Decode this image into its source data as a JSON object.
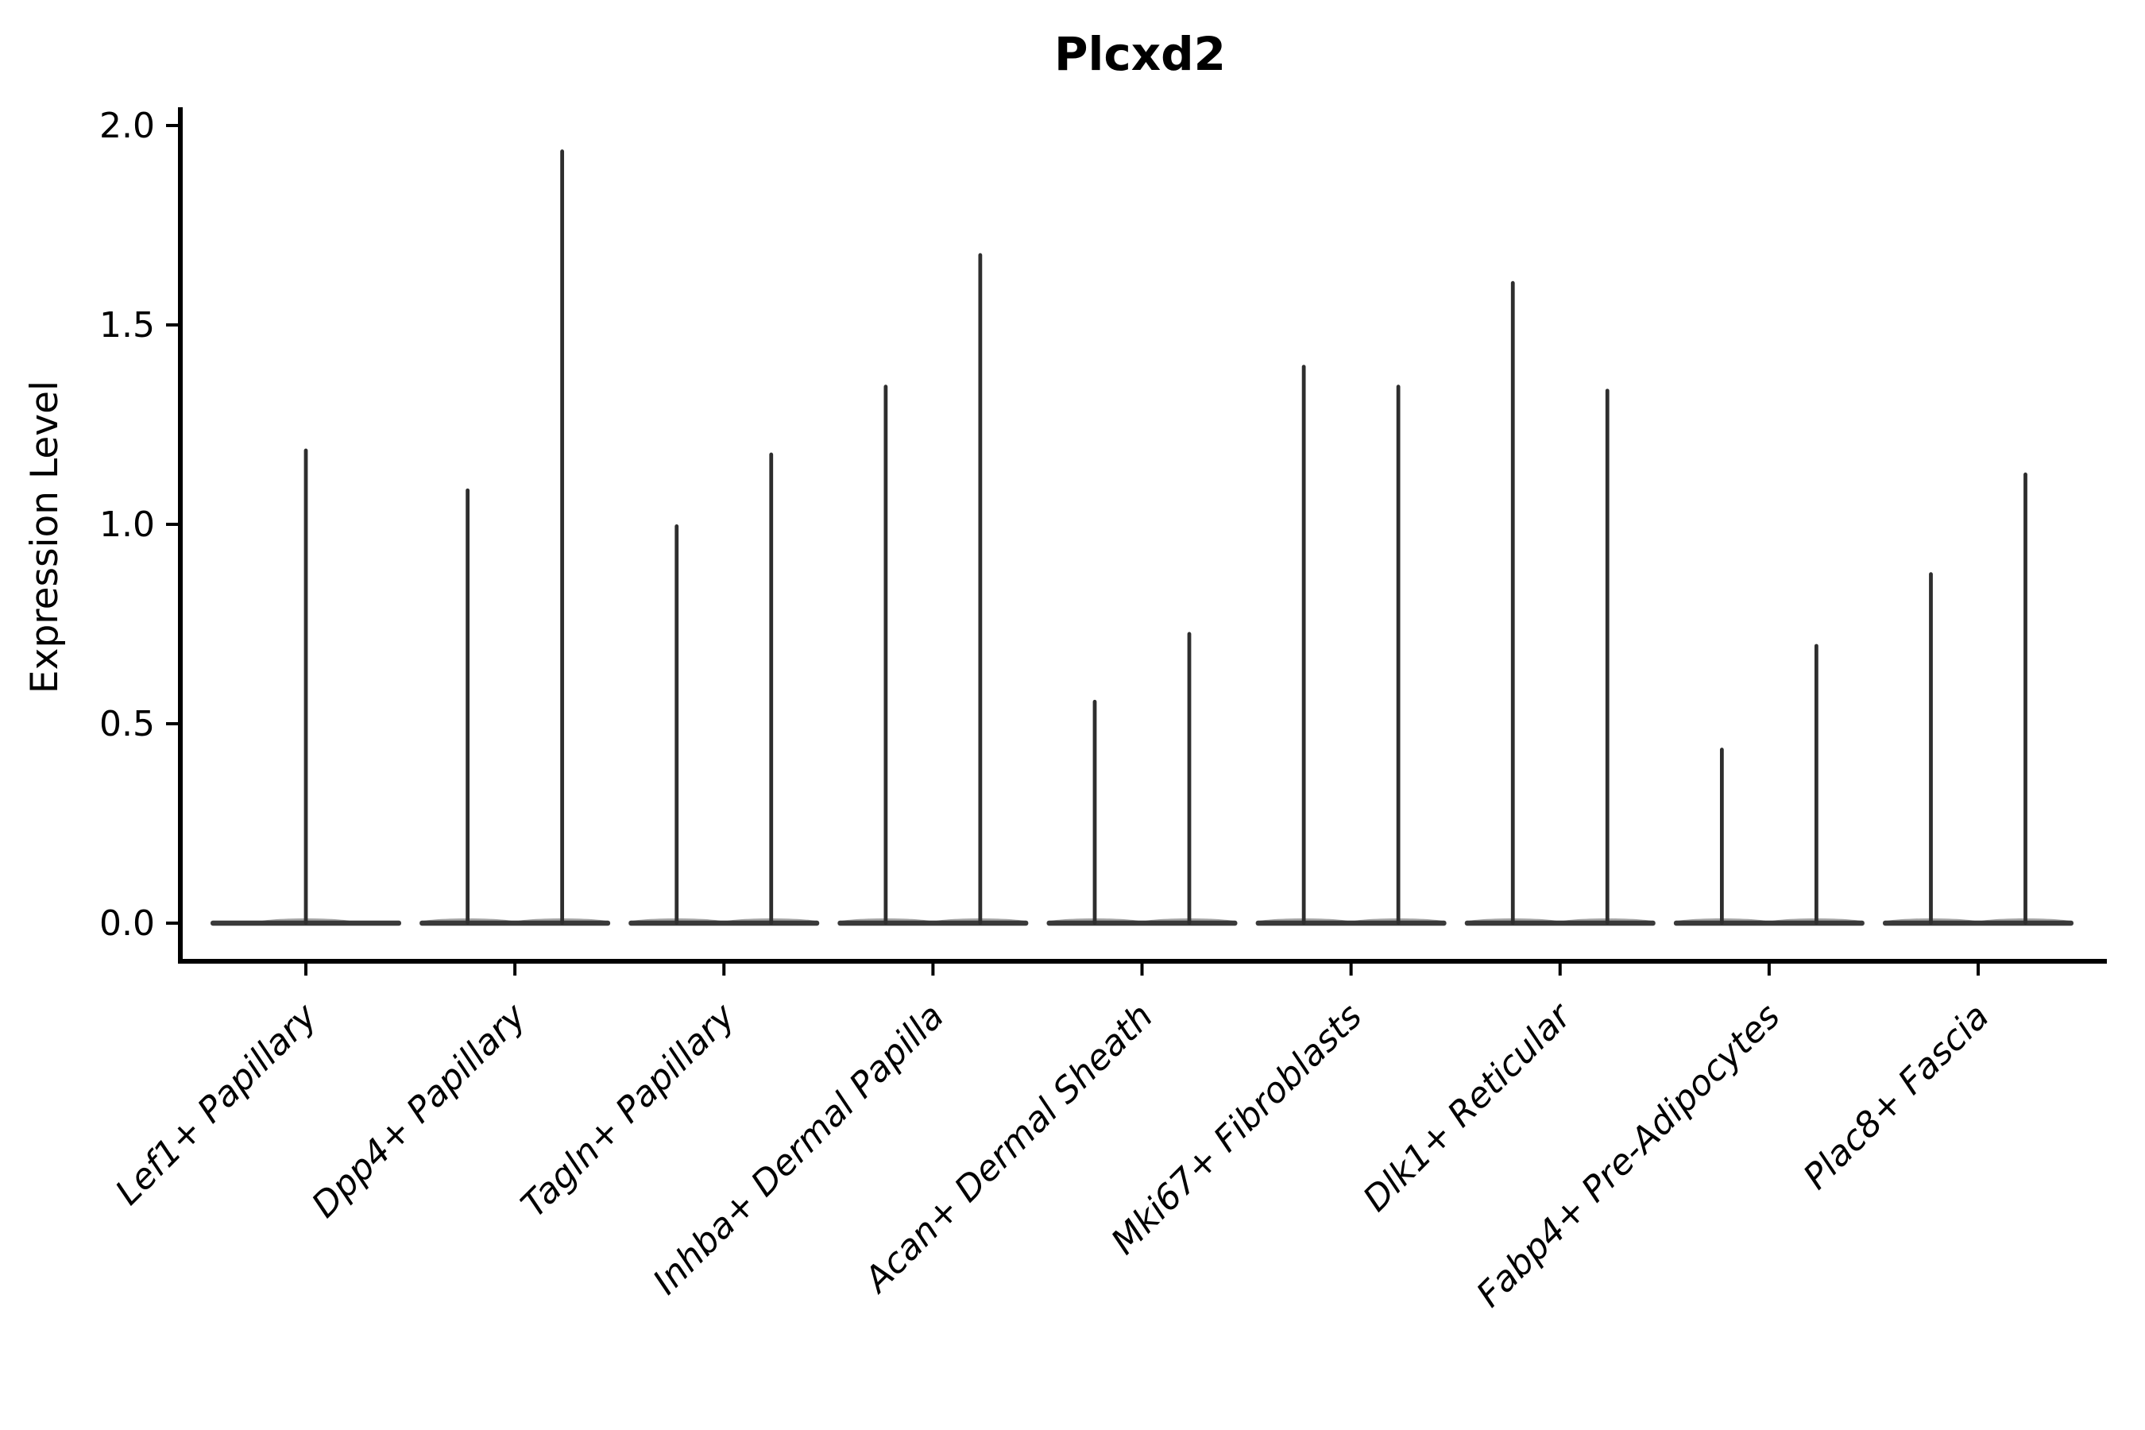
{
  "figure": {
    "background": "#ffffff"
  },
  "chart_data": {
    "type": "violin",
    "title": "Plcxd2",
    "ylabel": "Expression Level",
    "xlabel": "",
    "ylim": [
      0,
      2.05
    ],
    "ytick_values": [
      0.0,
      0.5,
      1.0,
      1.5,
      2.0
    ],
    "ytick_labels": [
      "0.0",
      "0.5",
      "1.0",
      "1.5",
      "2.0"
    ],
    "categories": [
      "Lef1+ Papillary",
      "Dpp4+ Papillary",
      "Tagln+ Papillary",
      "Inhba+ Dermal Papilla",
      "Acan+ Dermal Sheath",
      "Mki67+ Fibroblasts",
      "Dlk1+ Reticular",
      "Fabp4+ Pre-Adipocytes",
      "Plac8+ Fascia"
    ],
    "series": [
      {
        "category": "Lef1+ Papillary",
        "violin_max_expression": [
          1.19
        ]
      },
      {
        "category": "Dpp4+ Papillary",
        "violin_max_expression": [
          1.09,
          1.94
        ]
      },
      {
        "category": "Tagln+ Papillary",
        "violin_max_expression": [
          1.0,
          1.18
        ]
      },
      {
        "category": "Inhba+ Dermal Papilla",
        "violin_max_expression": [
          1.35,
          1.68
        ]
      },
      {
        "category": "Acan+ Dermal Sheath",
        "violin_max_expression": [
          0.56,
          0.73
        ]
      },
      {
        "category": "Mki67+ Fibroblasts",
        "violin_max_expression": [
          1.4,
          1.35
        ]
      },
      {
        "category": "Dlk1+ Reticular",
        "violin_max_expression": [
          1.61,
          1.34
        ]
      },
      {
        "category": "Fabp4+ Pre-Adipocytes",
        "violin_max_expression": [
          0.44,
          0.7
        ]
      },
      {
        "category": "Plac8+ Fascia",
        "violin_max_expression": [
          0.88,
          1.13
        ]
      }
    ],
    "violins_collapsed_at_zero": true,
    "legend": "none",
    "grid": false,
    "violin_color": "#2e2e2e",
    "baseline_color": "#3a3a3a",
    "axis_color": "#000000",
    "text_color": "#000000",
    "xtick_label_style": "italic, rotated 45 degrees"
  }
}
